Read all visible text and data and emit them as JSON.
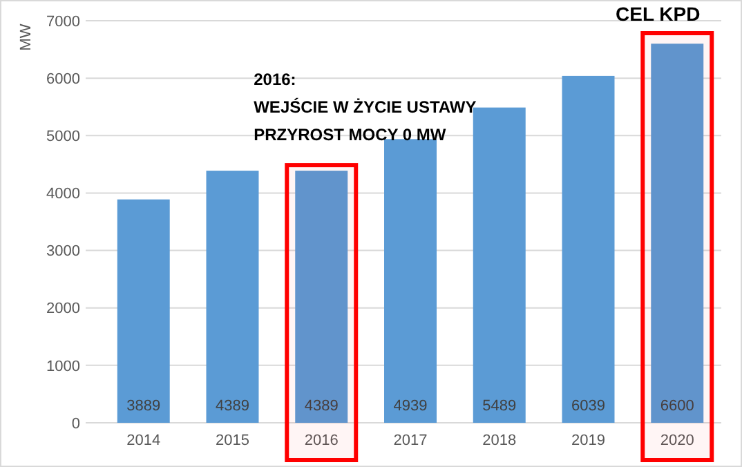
{
  "chart_data": {
    "type": "bar",
    "ylabel": "MW",
    "categories": [
      "2014",
      "2015",
      "2016",
      "2017",
      "2018",
      "2019",
      "2020"
    ],
    "values": [
      3889,
      4389,
      4389,
      4939,
      5489,
      6039,
      6600
    ],
    "color": "#5b9bd5",
    "ylim": [
      0,
      7000
    ],
    "yticks": [
      0,
      1000,
      2000,
      3000,
      4000,
      5000,
      6000,
      7000
    ],
    "grid": "y",
    "data_labels": true,
    "bands": [
      {
        "axis": "x",
        "from": "2016",
        "to": "2016",
        "label": "2016:\nWEJŚCIE W ŻYCIE USTAWY\nPRZYROST MOCY 0 MW",
        "color": "#ff0000"
      },
      {
        "axis": "x",
        "from": "2020",
        "to": "2020",
        "label": "CEL KPD",
        "color": "#ff0000"
      }
    ]
  }
}
